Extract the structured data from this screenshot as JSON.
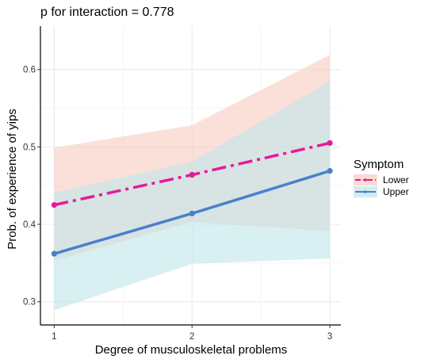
{
  "chart_data": {
    "type": "line",
    "title": "p for interaction = 0.778",
    "xlabel": "Degree of musculoskeletal problems",
    "ylabel": "Prob. of experience of yips",
    "x": [
      1,
      2,
      3
    ],
    "x_ticks": [
      "1",
      "2",
      "3"
    ],
    "xlim": [
      0.9,
      3.08
    ],
    "ylim": [
      0.27,
      0.656
    ],
    "y_ticks": [
      "0.3",
      "0.4",
      "0.5",
      "0.6"
    ],
    "y_tick_values": [
      0.3,
      0.4,
      0.5,
      0.6
    ],
    "grid": true,
    "legend": {
      "title": "Symptom",
      "position": "right"
    },
    "series": [
      {
        "name": "Lower",
        "values": [
          0.425,
          0.464,
          0.505
        ],
        "ci_lower": [
          0.353,
          0.403,
          0.391
        ],
        "ci_upper": [
          0.499,
          0.528,
          0.619
        ],
        "color": "#e6199a",
        "fill": "#f9cbbf",
        "line_style": "dashdot"
      },
      {
        "name": "Upper",
        "values": [
          0.362,
          0.414,
          0.469
        ],
        "ci_lower": [
          0.289,
          0.349,
          0.356
        ],
        "ci_upper": [
          0.441,
          0.481,
          0.585
        ],
        "color": "#4a7fcc",
        "fill": "#bfe6ea",
        "line_style": "solid"
      }
    ]
  }
}
